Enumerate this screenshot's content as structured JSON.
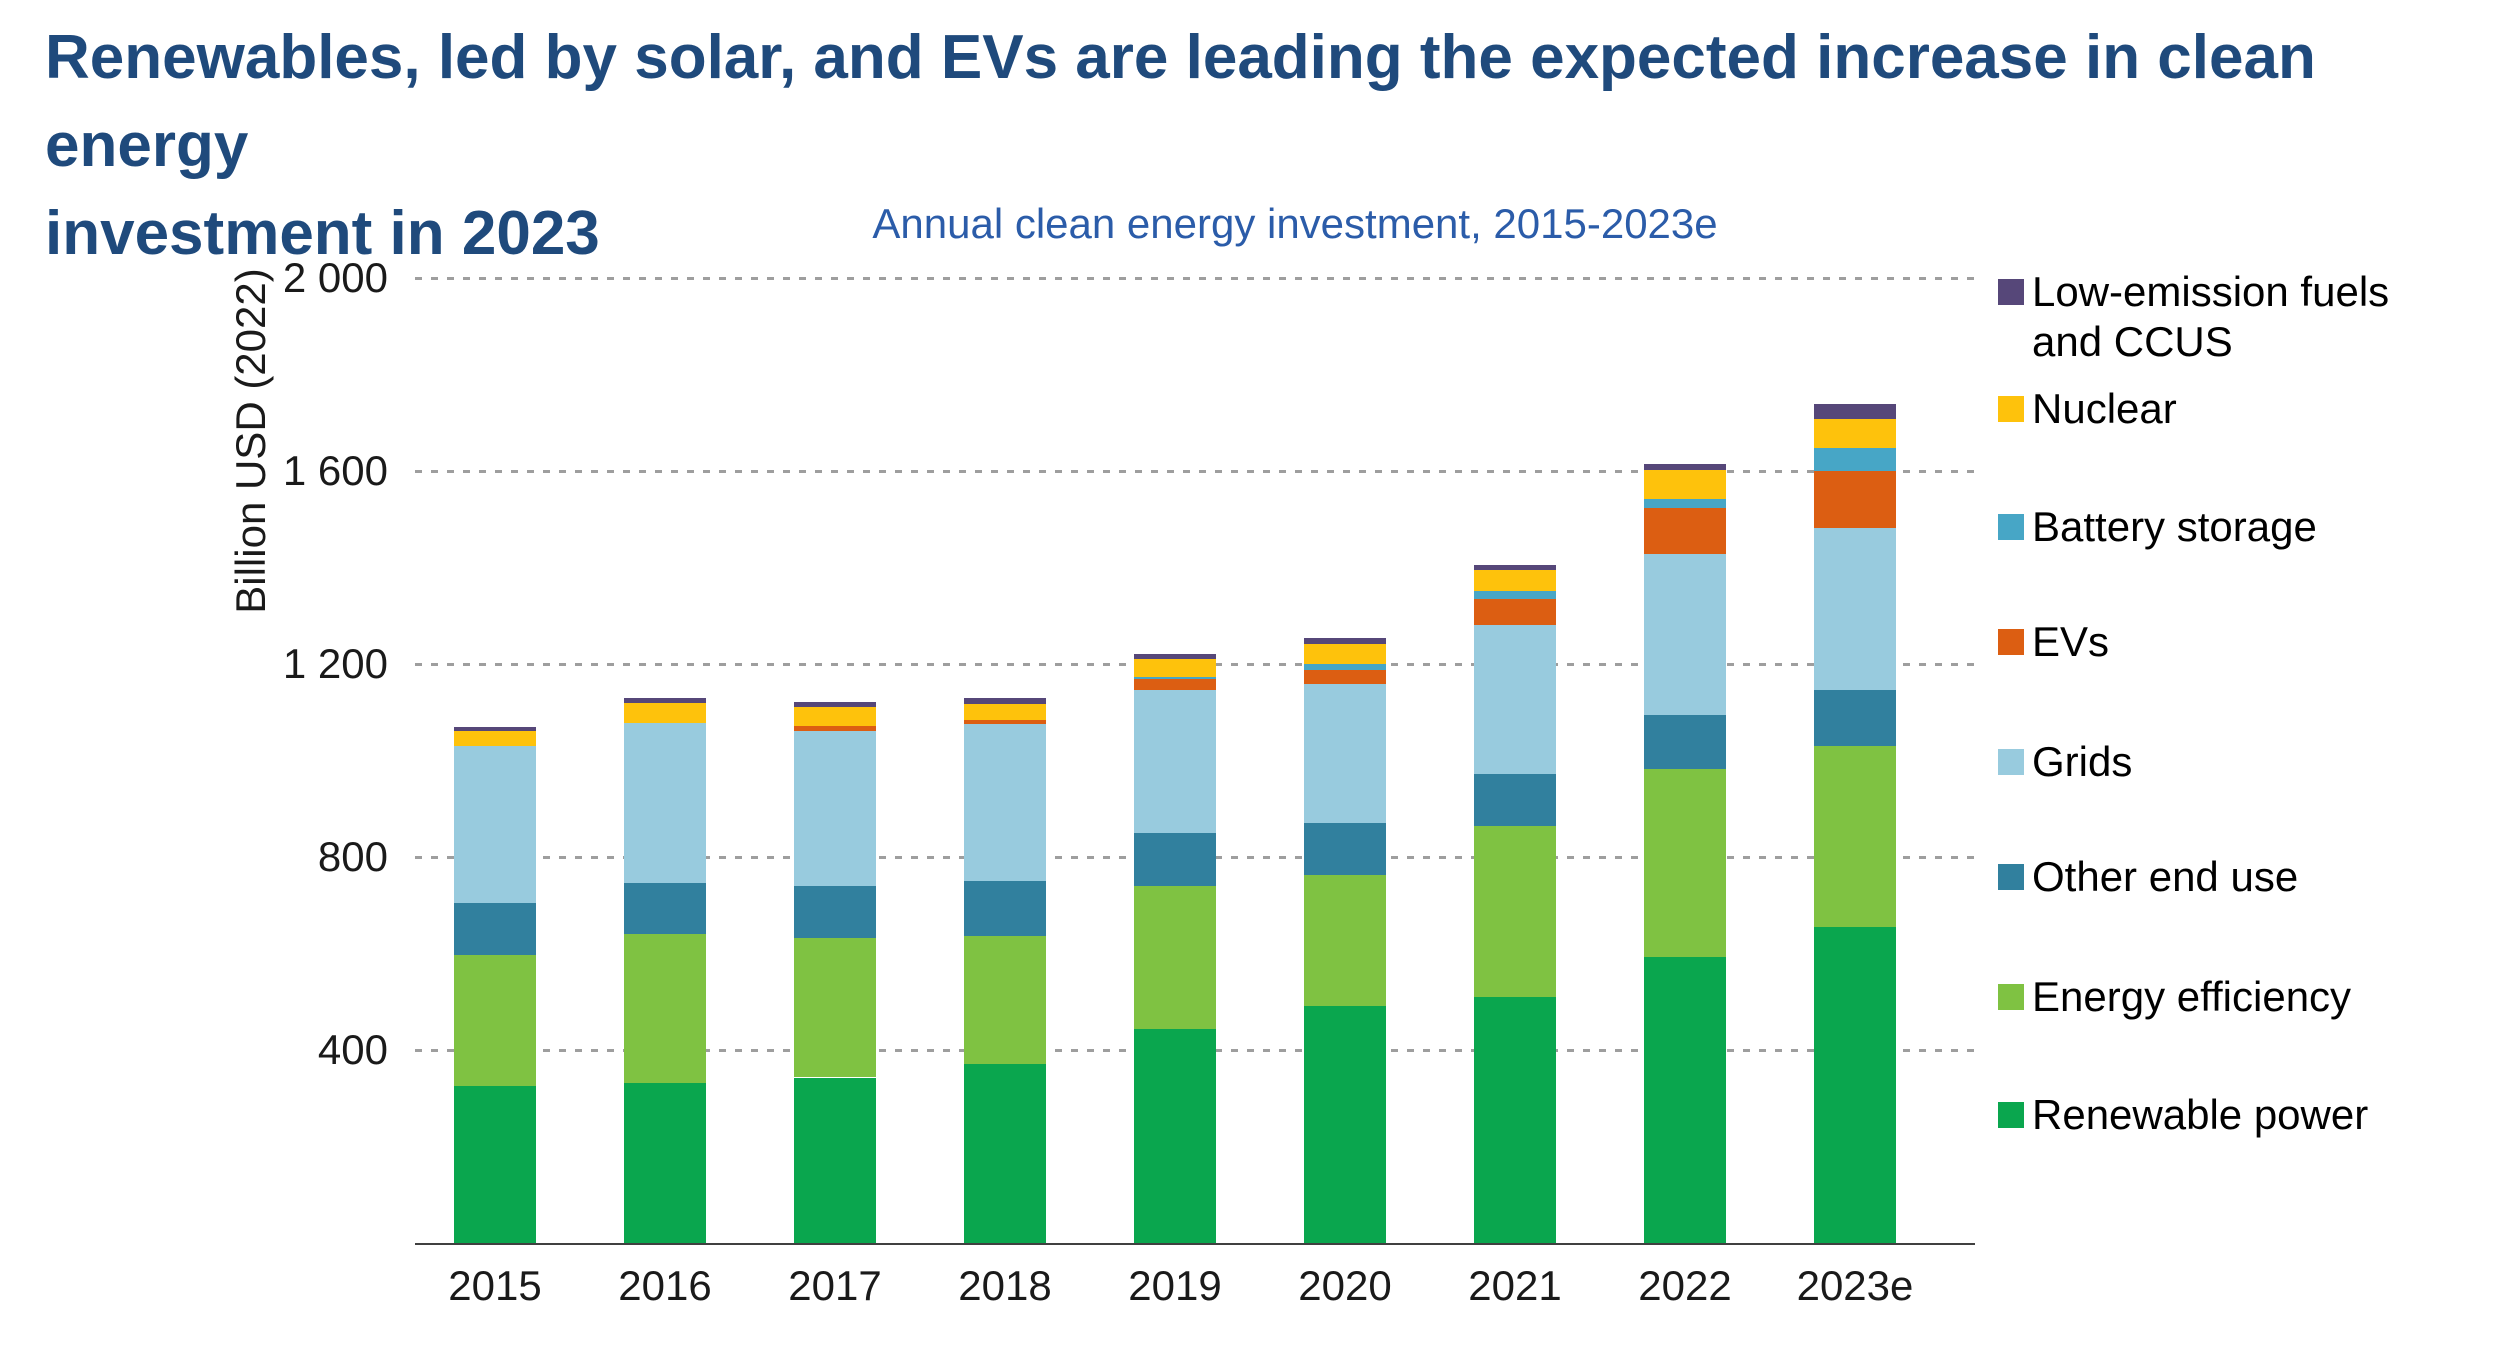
{
  "header": {
    "title_line1": "Renewables, led by solar, and EVs are leading the expected increase in clean energy",
    "title_line2": "investment in 2023",
    "title_color": "#1f4a7c"
  },
  "chart_data": {
    "type": "bar",
    "stacked": true,
    "title": "Annual clean energy investment, 2015-2023e",
    "title_color": "#2b5ca9",
    "xlabel": "",
    "ylabel": "Billion USD (2022)",
    "categories": [
      "2015",
      "2016",
      "2017",
      "2018",
      "2019",
      "2020",
      "2021",
      "2022",
      "2023e"
    ],
    "y_tick_labels": [
      "2 000",
      "1 600",
      "1 200",
      "800",
      "400"
    ],
    "y_tick_values": [
      2000,
      1600,
      1200,
      800,
      400
    ],
    "ylim": [
      0,
      2000
    ],
    "grid": "horizontal dotted",
    "legend_position": "right",
    "gridline_color": "#9e9e9e",
    "axis_color": "#404040",
    "series": [
      {
        "name": "Low-emission fuels and CCUS",
        "color": "#564779",
        "values": [
          8,
          11,
          11,
          11,
          9,
          11,
          11,
          11,
          31
        ]
      },
      {
        "name": "Nuclear",
        "color": "#fec20c",
        "values": [
          30,
          41,
          39,
          34,
          38,
          43,
          43,
          61,
          61
        ]
      },
      {
        "name": "Battery storage",
        "color": "#47a6c6",
        "values": [
          0,
          0,
          0,
          0,
          4,
          11,
          16,
          19,
          47
        ]
      },
      {
        "name": "EVs",
        "color": "#dc5e12",
        "values": [
          0,
          0,
          9,
          9,
          23,
          30,
          54,
          95,
          118
        ]
      },
      {
        "name": "Grids",
        "color": "#98cbde",
        "values": [
          326,
          332,
          323,
          325,
          296,
          287,
          309,
          334,
          336
        ]
      },
      {
        "name": "Other end use",
        "color": "#31809e",
        "values": [
          108,
          105,
          106,
          113,
          111,
          108,
          108,
          111,
          115
        ]
      },
      {
        "name": "Energy efficiency",
        "color": "#7fc242",
        "values": [
          272,
          309,
          290,
          267,
          296,
          271,
          355,
          390,
          376
        ]
      },
      {
        "name": "Renewable power",
        "color": "#0aa64e",
        "values": [
          325,
          332,
          343,
          370,
          443,
          492,
          509,
          593,
          655
        ]
      }
    ],
    "totals": [
      1069,
      1130,
      1121,
      1129,
      1220,
      1253,
      1405,
      1614,
      1739
    ],
    "note": "series listed top-to-bottom of stack; bars stack bottom-to-top in reverse order"
  }
}
